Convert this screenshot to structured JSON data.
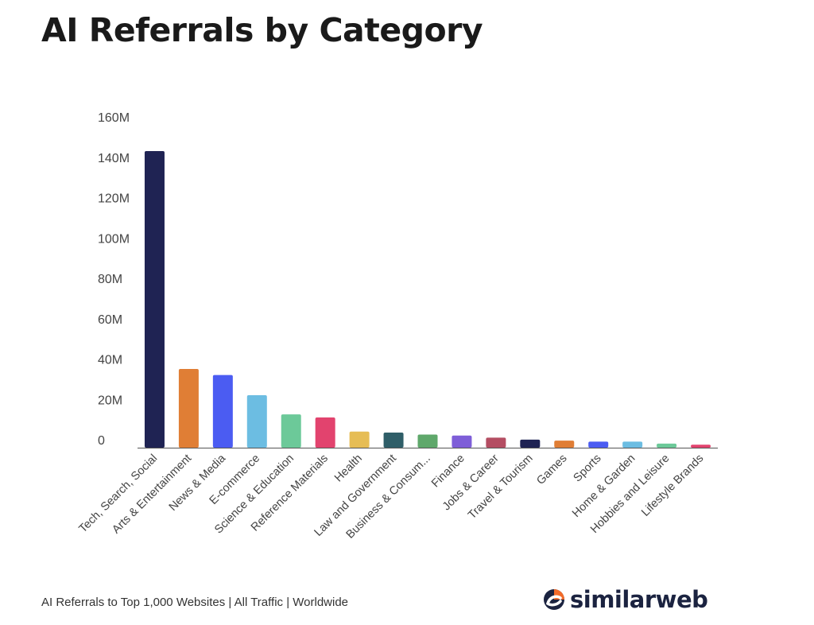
{
  "title": "AI Referrals by Category",
  "footer": "AI Referrals to Top 1,000 Websites | All Traffic | Worldwide",
  "brand": {
    "name": "similarweb",
    "icon": "similarweb-logo-icon",
    "colors": [
      "#1b2340",
      "#f26b2a"
    ]
  },
  "chart_data": {
    "type": "bar",
    "categories": [
      "Tech, Search, Social",
      "Arts & Entertainment",
      "News & Media",
      "E-commerce",
      "Science & Education",
      "Reference Materials",
      "Health",
      "Law and Government",
      "Business & Consum...",
      "Finance",
      "Jobs & Career",
      "Travel & Tourism",
      "Games",
      "Sports",
      "Home & Garden",
      "Hobbies and Leisure",
      "Lifestyle Brands"
    ],
    "values": [
      147,
      39,
      36,
      26,
      16.5,
      15,
      8,
      7.5,
      6.5,
      6,
      5,
      4,
      3.5,
      3,
      3,
      2,
      1.5
    ],
    "colors": [
      "#1f2353",
      "#e07e35",
      "#4b5cf2",
      "#6cbde2",
      "#6cc999",
      "#e2436e",
      "#e6bd55",
      "#2f5e68",
      "#5fa86b",
      "#7e5ed8",
      "#b44d62",
      "#1f2353",
      "#e07e35",
      "#4b5cf2",
      "#6cbde2",
      "#6cc999",
      "#e2436e"
    ],
    "yticks": [
      0,
      20,
      40,
      60,
      80,
      100,
      120,
      140,
      160
    ],
    "ytick_labels": [
      "0",
      "20M",
      "40M",
      "60M",
      "80M",
      "100M",
      "120M",
      "140M",
      "160M"
    ],
    "ylim": [
      0,
      160
    ],
    "xlabel": "",
    "ylabel": "",
    "grid": false
  }
}
